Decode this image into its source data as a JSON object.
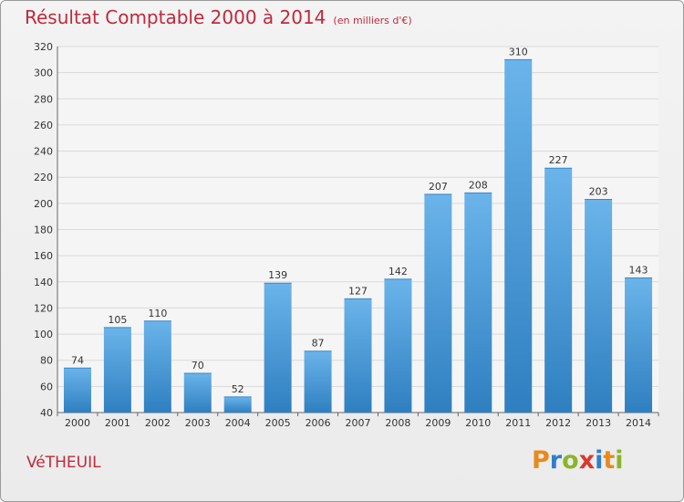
{
  "header": {
    "title": "Résultat Comptable 2000 à 2014",
    "subtitle": "(en milliers d'€)"
  },
  "footer": {
    "town": "VéTHEUIL",
    "logo_letters": [
      "P",
      "r",
      "o",
      "x",
      "i",
      "t",
      "i"
    ],
    "logo_colors": [
      "#e88a1a",
      "#2f7fc8",
      "#8ab52a",
      "#d73a2e",
      "#2f7fc8",
      "#e88a1a",
      "#8ab52a"
    ]
  },
  "colors": {
    "bar_light": "#6ab4ea",
    "bar_dark": "#2f7fc0",
    "title": "#c0293b"
  },
  "chart_data": {
    "type": "bar",
    "categories": [
      "2000",
      "2001",
      "2002",
      "2003",
      "2004",
      "2005",
      "2006",
      "2007",
      "2008",
      "2009",
      "2010",
      "2011",
      "2012",
      "2013",
      "2014"
    ],
    "values": [
      74,
      105,
      110,
      70,
      52,
      139,
      87,
      127,
      142,
      207,
      208,
      310,
      227,
      203,
      143
    ],
    "ylim": [
      40,
      320
    ],
    "yticks": [
      40,
      60,
      80,
      100,
      120,
      140,
      160,
      180,
      200,
      220,
      240,
      260,
      280,
      300,
      320
    ],
    "grid": true
  }
}
